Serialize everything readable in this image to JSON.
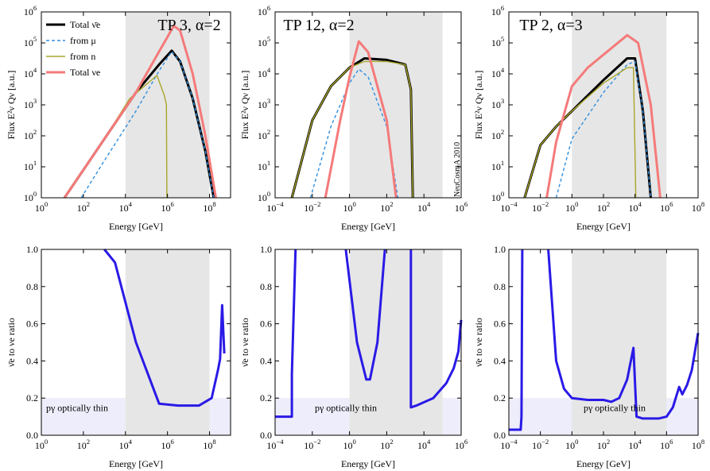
{
  "figure_credit": "NeuCosmA 2010",
  "chart_data": [
    {
      "type": "line",
      "yscale": "log",
      "title": "TP 3, α=2",
      "xlabel": "Energy [GeV]",
      "ylabel": "Flux E²ν Qν [a.u.]",
      "xlim_log10": [
        0,
        9
      ],
      "ylim_log10": [
        0,
        6
      ],
      "x_ticks_log10": [
        0,
        2,
        4,
        6,
        8
      ],
      "y_ticks_log10": [
        0,
        1,
        2,
        3,
        4,
        5,
        6
      ],
      "shaded_band_log10": [
        4,
        8
      ],
      "legend": [
        "Total ν̄e",
        "from μ",
        "from n",
        "Total νe"
      ],
      "legend_position": "top-left",
      "series": [
        {
          "name": "Total ν̄e",
          "color": "#000000",
          "points": [
            [
              1.1,
              0
            ],
            [
              3,
              1.9
            ],
            [
              4.5,
              3.4
            ],
            [
              5.6,
              4.3
            ],
            [
              6.2,
              4.75
            ],
            [
              6.6,
              4.4
            ],
            [
              7.2,
              3.2
            ],
            [
              7.8,
              1.5
            ],
            [
              8.2,
              0
            ]
          ]
        },
        {
          "name": "from μ",
          "color": "#2f8fe0",
          "points": [
            [
              1.9,
              0
            ],
            [
              3,
              1.2
            ],
            [
              4.5,
              2.8
            ],
            [
              5.6,
              4.1
            ],
            [
              6.2,
              4.72
            ],
            [
              6.6,
              4.4
            ],
            [
              7.2,
              3.2
            ],
            [
              7.8,
              1.5
            ],
            [
              8.2,
              0
            ]
          ]
        },
        {
          "name": "from n",
          "color": "#a8a62a",
          "points": [
            [
              1.1,
              0
            ],
            [
              3,
              1.9
            ],
            [
              4.2,
              3.2
            ],
            [
              5.5,
              3.95
            ],
            [
              5.85,
              3.3
            ],
            [
              5.95,
              3.0
            ],
            [
              5.97,
              0
            ]
          ]
        },
        {
          "name": "Total νe",
          "color": "#f57a7a",
          "points": [
            [
              1.1,
              0
            ],
            [
              3,
              1.9
            ],
            [
              4.5,
              3.4
            ],
            [
              5.5,
              4.6
            ],
            [
              6.3,
              5.55
            ],
            [
              6.6,
              5.4
            ],
            [
              7.2,
              4.0
            ],
            [
              7.8,
              2.0
            ],
            [
              8.3,
              0
            ]
          ]
        }
      ]
    },
    {
      "type": "line",
      "yscale": "log",
      "title": "TP 12, α=2",
      "xlabel": "Energy [GeV]",
      "ylabel": "Flux E²ν Qν [a.u.]",
      "xlim_log10": [
        -4,
        6
      ],
      "ylim_log10": [
        0,
        6
      ],
      "x_ticks_log10": [
        -4,
        -2,
        0,
        2,
        4,
        6
      ],
      "y_ticks_log10": [
        0,
        1,
        2,
        3,
        4,
        5,
        6
      ],
      "shaded_band_log10": [
        0,
        5
      ],
      "series": [
        {
          "name": "Total ν̄e",
          "color": "#000000",
          "points": [
            [
              -3.1,
              0
            ],
            [
              -2,
              2.5
            ],
            [
              -1,
              3.6
            ],
            [
              0,
              4.2
            ],
            [
              0.8,
              4.5
            ],
            [
              2,
              4.45
            ],
            [
              3,
              4.3
            ],
            [
              3.3,
              3.5
            ],
            [
              3.4,
              0
            ]
          ]
        },
        {
          "name": "from μ",
          "color": "#2f8fe0",
          "points": [
            [
              -2.1,
              0
            ],
            [
              -1,
              2.3
            ],
            [
              0,
              3.7
            ],
            [
              0.5,
              4.15
            ],
            [
              1,
              3.9
            ],
            [
              2,
              2.3
            ],
            [
              2.6,
              0
            ]
          ]
        },
        {
          "name": "from n",
          "color": "#a8a62a",
          "points": [
            [
              -3.1,
              0
            ],
            [
              -2,
              2.5
            ],
            [
              -1,
              3.6
            ],
            [
              0,
              4.2
            ],
            [
              0.8,
              4.4
            ],
            [
              2,
              4.4
            ],
            [
              3,
              4.3
            ],
            [
              3.3,
              3.5
            ],
            [
              3.4,
              0
            ]
          ]
        },
        {
          "name": "Total νe",
          "color": "#f57a7a",
          "points": [
            [
              -1.3,
              0
            ],
            [
              -0.5,
              2.5
            ],
            [
              0,
              3.9
            ],
            [
              0.5,
              5.05
            ],
            [
              1,
              4.7
            ],
            [
              2,
              2.5
            ],
            [
              2.5,
              0
            ]
          ]
        }
      ]
    },
    {
      "type": "line",
      "yscale": "log",
      "title": "TP 2, α=3",
      "xlabel": "Energy [GeV]",
      "ylabel": "Flux E²ν Qν [a.u.]",
      "xlim_log10": [
        -4,
        8
      ],
      "ylim_log10": [
        0,
        6
      ],
      "x_ticks_log10": [
        -4,
        -2,
        0,
        2,
        4,
        6,
        8
      ],
      "y_ticks_log10": [
        0,
        1,
        2,
        3,
        4,
        5,
        6
      ],
      "shaded_band_log10": [
        0,
        6
      ],
      "series": [
        {
          "name": "Total ν̄e",
          "color": "#000000",
          "points": [
            [
              -3.0,
              0
            ],
            [
              -2,
              1.7
            ],
            [
              -1,
              2.3
            ],
            [
              0,
              2.8
            ],
            [
              2,
              3.8
            ],
            [
              3.5,
              4.5
            ],
            [
              4.0,
              4.5
            ],
            [
              4.5,
              2.8
            ],
            [
              5.0,
              0
            ]
          ]
        },
        {
          "name": "from μ",
          "color": "#2f8fe0",
          "points": [
            [
              -1.0,
              0
            ],
            [
              0,
              1.9
            ],
            [
              2,
              3.4
            ],
            [
              3.5,
              4.3
            ],
            [
              4.0,
              4.4
            ],
            [
              4.5,
              2.8
            ],
            [
              5.0,
              0
            ]
          ]
        },
        {
          "name": "from n",
          "color": "#a8a62a",
          "points": [
            [
              -3.0,
              0
            ],
            [
              -2,
              1.7
            ],
            [
              -1,
              2.3
            ],
            [
              0,
              2.8
            ],
            [
              2,
              3.7
            ],
            [
              3.5,
              4.2
            ],
            [
              3.9,
              4.2
            ],
            [
              4.05,
              0
            ]
          ]
        },
        {
          "name": "Total νe",
          "color": "#f57a7a",
          "points": [
            [
              -1.6,
              0
            ],
            [
              -1,
              1.8
            ],
            [
              0,
              3.6
            ],
            [
              1,
              4.2
            ],
            [
              3.5,
              5.25
            ],
            [
              4.2,
              5.0
            ],
            [
              5,
              3.0
            ],
            [
              5.6,
              0
            ]
          ]
        }
      ]
    },
    {
      "type": "line",
      "xlabel": "Energy [GeV]",
      "ylabel": "ν̄e to νe ratio",
      "xlim_log10": [
        0,
        9
      ],
      "ylim": [
        0,
        1.0
      ],
      "x_ticks_log10": [
        0,
        2,
        4,
        6,
        8
      ],
      "y_ticks": [
        0.0,
        0.2,
        0.4,
        0.6,
        0.8,
        1.0
      ],
      "shaded_band_log10": [
        4,
        8
      ],
      "thin_region_label": "pγ optically thin",
      "thin_region_max": 0.2,
      "series": [
        {
          "name": "ratio",
          "color": "#2a1ae6",
          "points": [
            [
              3,
              1.0
            ],
            [
              3.5,
              0.93
            ],
            [
              4.5,
              0.5
            ],
            [
              5.6,
              0.17
            ],
            [
              6.5,
              0.16
            ],
            [
              7.5,
              0.16
            ],
            [
              8.1,
              0.2
            ],
            [
              8.4,
              0.35
            ],
            [
              8.5,
              0.41
            ],
            [
              8.6,
              0.7
            ],
            [
              8.7,
              0.44
            ]
          ]
        }
      ]
    },
    {
      "type": "line",
      "xlabel": "Energy [GeV]",
      "ylabel": "ν̄e to νe ratio",
      "xlim_log10": [
        -4,
        6
      ],
      "ylim": [
        0,
        1.0
      ],
      "x_ticks_log10": [
        -4,
        -2,
        0,
        2,
        4,
        6
      ],
      "y_ticks": [
        0.0,
        0.2,
        0.4,
        0.6,
        0.8,
        1.0
      ],
      "shaded_band_log10": [
        0,
        5
      ],
      "thin_region_label": "pγ optically thin",
      "thin_region_max": 0.2,
      "series": [
        {
          "name": "ratio",
          "color": "#2a1ae6",
          "points": [
            [
              -4,
              0.1
            ],
            [
              -3.1,
              0.1
            ],
            [
              -3.1,
              0.33
            ],
            [
              -2.9,
              1.0
            ]
          ]
        },
        {
          "name": "ratio",
          "color": "#2a1ae6",
          "points": [
            [
              -0.2,
              1.0
            ],
            [
              0.4,
              0.5
            ],
            [
              0.9,
              0.3
            ],
            [
              1.1,
              0.3
            ],
            [
              1.5,
              0.5
            ],
            [
              1.9,
              1.0
            ]
          ]
        },
        {
          "name": "ratio",
          "color": "#2a1ae6",
          "points": [
            [
              3.3,
              1.0
            ],
            [
              3.3,
              0.15
            ],
            [
              3.6,
              0.16
            ],
            [
              4.5,
              0.2
            ],
            [
              5.2,
              0.28
            ],
            [
              5.6,
              0.36
            ],
            [
              5.85,
              0.45
            ],
            [
              6,
              0.62
            ]
          ]
        }
      ]
    },
    {
      "type": "line",
      "xlabel": "Energy [GeV]",
      "ylabel": "ν̄e to νe ratio",
      "xlim_log10": [
        -4,
        8
      ],
      "ylim": [
        0,
        1.0
      ],
      "x_ticks_log10": [
        -4,
        -2,
        0,
        2,
        4,
        6,
        8
      ],
      "y_ticks": [
        0.0,
        0.2,
        0.4,
        0.6,
        0.8,
        1.0
      ],
      "shaded_band_log10": [
        0,
        6
      ],
      "thin_region_label": "pγ optically thin",
      "thin_region_max": 0.2,
      "series": [
        {
          "name": "ratio",
          "color": "#2a1ae6",
          "points": [
            [
              -4,
              0.03
            ],
            [
              -3.25,
              0.03
            ],
            [
              -3.2,
              0.1
            ],
            [
              -3.15,
              1.0
            ]
          ]
        },
        {
          "name": "ratio",
          "color": "#2a1ae6",
          "points": [
            [
              -1.5,
              1.0
            ],
            [
              -1,
              0.4
            ],
            [
              -0.5,
              0.25
            ],
            [
              0,
              0.2
            ],
            [
              1,
              0.19
            ],
            [
              2,
              0.19
            ],
            [
              2.5,
              0.18
            ],
            [
              3,
              0.2
            ],
            [
              3.5,
              0.3
            ],
            [
              3.9,
              0.47
            ],
            [
              4.1,
              0.1
            ],
            [
              4.5,
              0.09
            ],
            [
              5.5,
              0.09
            ],
            [
              6,
              0.1
            ],
            [
              6.4,
              0.15
            ],
            [
              6.8,
              0.26
            ],
            [
              7,
              0.22
            ],
            [
              7.3,
              0.27
            ],
            [
              7.6,
              0.35
            ],
            [
              7.9,
              0.5
            ],
            [
              8,
              0.55
            ]
          ]
        }
      ]
    }
  ]
}
